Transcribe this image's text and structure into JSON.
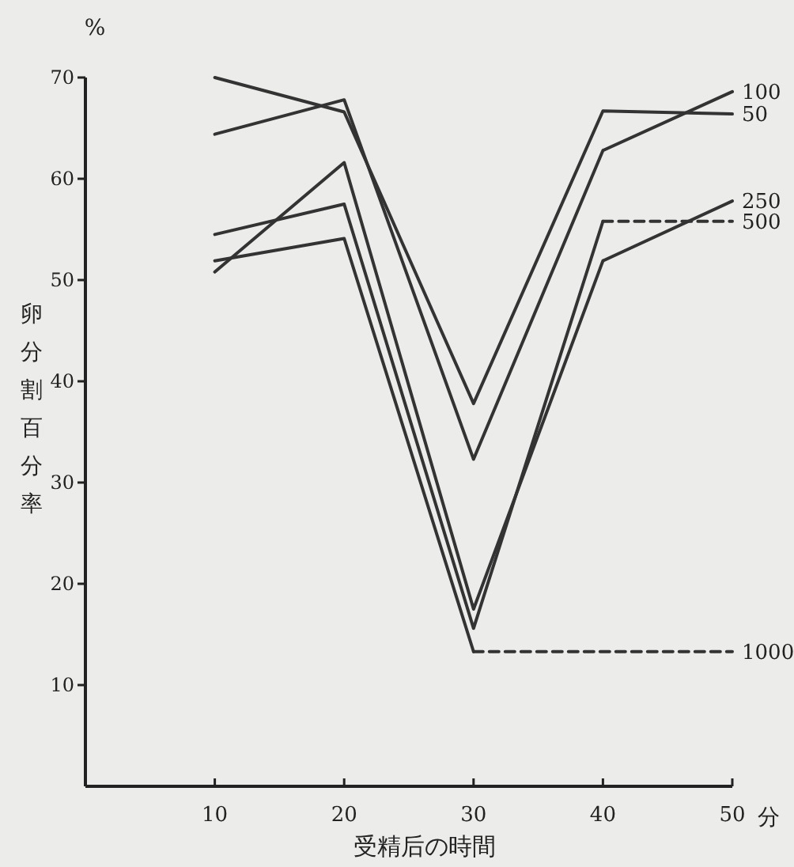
{
  "chart_data": {
    "type": "line",
    "xlabel": "受精后の時間",
    "ylabel": "卵分割百分率",
    "annotations": [
      "%",
      "分"
    ],
    "xlim": [
      0,
      50
    ],
    "ylim": [
      0,
      70
    ],
    "xticks": [
      10,
      20,
      30,
      40,
      50
    ],
    "yticks": [
      10,
      20,
      30,
      40,
      50,
      60,
      70
    ],
    "grid": false,
    "marker": "none",
    "series": [
      {
        "name": "100",
        "color": "#333333",
        "x": [
          10,
          20,
          30,
          40,
          50
        ],
        "values": [
          64.4,
          67.8,
          32.3,
          62.8,
          68.6
        ]
      },
      {
        "name": "50",
        "color": "#333333",
        "x": [
          10,
          20,
          30,
          40,
          50
        ],
        "values": [
          70,
          66.6,
          37.8,
          66.7,
          66.4
        ]
      },
      {
        "name": "250",
        "color": "#333333",
        "x": [
          10,
          20,
          30,
          40,
          50
        ],
        "values": [
          50.8,
          61.6,
          17.5,
          51.9,
          57.8
        ]
      },
      {
        "color": "#333333",
        "x": [
          10,
          20,
          30,
          40
        ],
        "values": [
          54.5,
          57.5,
          15.6,
          55.8
        ]
      },
      {
        "name": "500",
        "color": "#333333",
        "x": [
          40,
          50
        ],
        "values": [
          55.8,
          55.8
        ],
        "line_style": "dashed"
      },
      {
        "color": "#333333",
        "x": [
          10,
          20,
          30
        ],
        "values": [
          51.9,
          54.1,
          13.3
        ]
      },
      {
        "name": "1000",
        "color": "#333333",
        "x": [
          30,
          40,
          50
        ],
        "values": [
          13.3,
          13.3,
          13.3
        ],
        "line_style": "dashed"
      }
    ]
  }
}
